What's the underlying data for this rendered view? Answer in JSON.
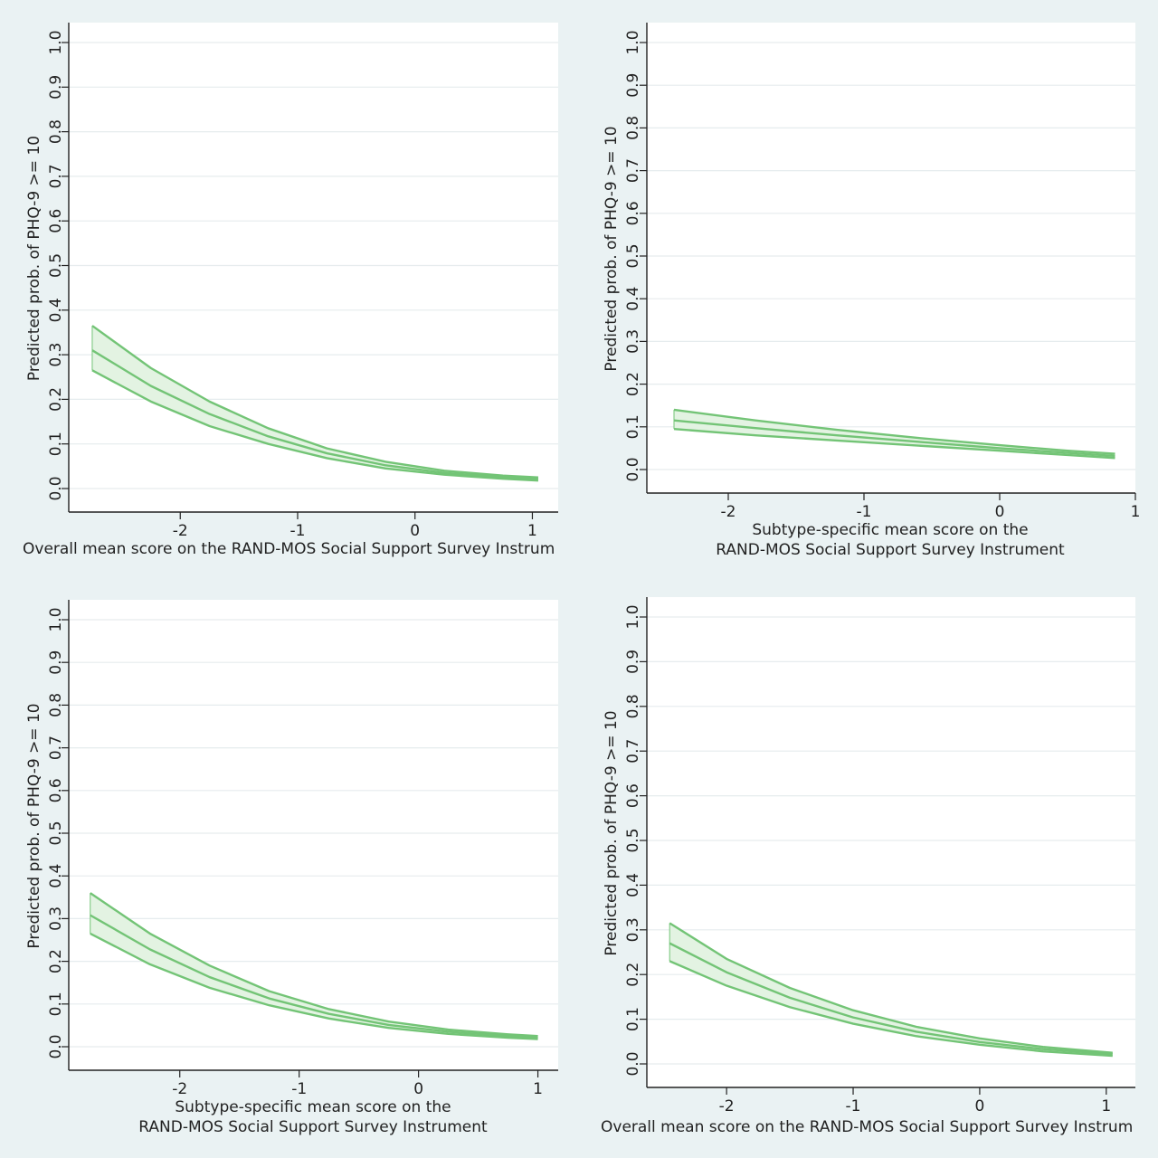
{
  "chart_data": [
    {
      "type": "line",
      "panel": "top-left",
      "ylabel": "Predicted prob. of PHQ-9 >= 10",
      "xlabel_lines": [
        "Overall mean score on the RAND-MOS Social Support Survey Instrum"
      ],
      "ylim": [
        0,
        1
      ],
      "yticks": [
        "0.0",
        "0.1",
        "0.2",
        "0.3",
        "0.4",
        "0.5",
        "0.6",
        "0.7",
        "0.8",
        "0.9",
        "1.0"
      ],
      "xlim": [
        -2.95,
        1.22
      ],
      "xticks": [
        -2,
        -1,
        0,
        1
      ],
      "grid": true,
      "color": "#73c476",
      "band_fill": "#e3f3e2",
      "series": [
        {
          "role": "upper",
          "x": [
            -2.75,
            -2.25,
            -1.75,
            -1.25,
            -0.75,
            -0.25,
            0.25,
            0.75,
            1.05
          ],
          "values": [
            0.365,
            0.27,
            0.195,
            0.135,
            0.09,
            0.06,
            0.04,
            0.029,
            0.025
          ]
        },
        {
          "role": "estimate",
          "x": [
            -2.75,
            -2.25,
            -1.75,
            -1.25,
            -0.75,
            -0.25,
            0.25,
            0.75,
            1.05
          ],
          "values": [
            0.31,
            0.23,
            0.167,
            0.117,
            0.079,
            0.052,
            0.035,
            0.026,
            0.022
          ]
        },
        {
          "role": "lower",
          "x": [
            -2.75,
            -2.25,
            -1.75,
            -1.25,
            -0.75,
            -0.25,
            0.25,
            0.75,
            1.05
          ],
          "values": [
            0.265,
            0.195,
            0.14,
            0.1,
            0.068,
            0.045,
            0.031,
            0.022,
            0.018
          ]
        }
      ]
    },
    {
      "type": "line",
      "panel": "top-right",
      "ylabel": "Predicted prob. of PHQ-9 >= 10",
      "xlabel_lines": [
        "Subtype-specific mean score on the",
        "RAND-MOS Social Support Survey Instrument"
      ],
      "ylim": [
        0,
        1
      ],
      "yticks": [
        "0.0",
        "0.1",
        "0.2",
        "0.3",
        "0.4",
        "0.5",
        "0.6",
        "0.7",
        "0.8",
        "0.9",
        "1.0"
      ],
      "xlim": [
        -2.6,
        1.0
      ],
      "xticks": [
        -2,
        -1,
        0,
        1
      ],
      "grid": true,
      "color": "#73c476",
      "band_fill": "#e3f3e2",
      "series": [
        {
          "role": "upper",
          "x": [
            -2.4,
            -1.8,
            -1.2,
            -0.6,
            0.0,
            0.5,
            0.85
          ],
          "values": [
            0.14,
            0.115,
            0.093,
            0.074,
            0.057,
            0.044,
            0.037
          ]
        },
        {
          "role": "estimate",
          "x": [
            -2.4,
            -1.8,
            -1.2,
            -0.6,
            0.0,
            0.5,
            0.85
          ],
          "values": [
            0.115,
            0.097,
            0.08,
            0.065,
            0.05,
            0.039,
            0.032
          ]
        },
        {
          "role": "lower",
          "x": [
            -2.4,
            -1.8,
            -1.2,
            -0.6,
            0.0,
            0.5,
            0.85
          ],
          "values": [
            0.095,
            0.08,
            0.068,
            0.056,
            0.044,
            0.034,
            0.027
          ]
        }
      ]
    },
    {
      "type": "line",
      "panel": "bottom-left",
      "ylabel": "Predicted prob. of PHQ-9 >= 10",
      "xlabel_lines": [
        "Subtype-specific mean score on the",
        "RAND-MOS Social Support Survey Instrument"
      ],
      "ylim": [
        0,
        1
      ],
      "yticks": [
        "0.0",
        "0.1",
        "0.2",
        "0.3",
        "0.4",
        "0.5",
        "0.6",
        "0.7",
        "0.8",
        "0.9",
        "1.0"
      ],
      "xlim": [
        -2.93,
        1.17
      ],
      "xticks": [
        -2,
        -1,
        0,
        1
      ],
      "grid": true,
      "color": "#73c476",
      "band_fill": "#e3f3e2",
      "series": [
        {
          "role": "upper",
          "x": [
            -2.75,
            -2.25,
            -1.75,
            -1.25,
            -0.75,
            -0.25,
            0.25,
            0.75,
            1.0
          ],
          "values": [
            0.36,
            0.265,
            0.19,
            0.13,
            0.088,
            0.059,
            0.04,
            0.029,
            0.025
          ]
        },
        {
          "role": "estimate",
          "x": [
            -2.75,
            -2.25,
            -1.75,
            -1.25,
            -0.75,
            -0.25,
            0.25,
            0.75,
            1.0
          ],
          "values": [
            0.308,
            0.228,
            0.163,
            0.113,
            0.077,
            0.051,
            0.035,
            0.025,
            0.021
          ]
        },
        {
          "role": "lower",
          "x": [
            -2.75,
            -2.25,
            -1.75,
            -1.25,
            -0.75,
            -0.25,
            0.25,
            0.75,
            1.0
          ],
          "values": [
            0.265,
            0.193,
            0.138,
            0.097,
            0.066,
            0.044,
            0.03,
            0.021,
            0.018
          ]
        }
      ]
    },
    {
      "type": "line",
      "panel": "bottom-right",
      "ylabel": "Predicted prob. of PHQ-9 >= 10",
      "xlabel_lines": [
        "Overall mean score on the RAND-MOS Social Support Survey Instrum"
      ],
      "ylim": [
        0,
        1
      ],
      "yticks": [
        "0.0",
        "0.1",
        "0.2",
        "0.3",
        "0.4",
        "0.5",
        "0.6",
        "0.7",
        "0.8",
        "0.9",
        "1.0"
      ],
      "xlim": [
        -2.63,
        1.23
      ],
      "xticks": [
        -2,
        -1,
        0,
        1
      ],
      "grid": true,
      "color": "#73c476",
      "band_fill": "#e3f3e2",
      "series": [
        {
          "role": "upper",
          "x": [
            -2.45,
            -2.0,
            -1.5,
            -1.0,
            -0.5,
            0.0,
            0.5,
            1.05
          ],
          "values": [
            0.315,
            0.235,
            0.17,
            0.12,
            0.083,
            0.057,
            0.038,
            0.025
          ]
        },
        {
          "role": "estimate",
          "x": [
            -2.45,
            -2.0,
            -1.5,
            -1.0,
            -0.5,
            0.0,
            0.5,
            1.05
          ],
          "values": [
            0.27,
            0.205,
            0.148,
            0.104,
            0.072,
            0.049,
            0.033,
            0.022
          ]
        },
        {
          "role": "lower",
          "x": [
            -2.45,
            -2.0,
            -1.5,
            -1.0,
            -0.5,
            0.0,
            0.5,
            1.05
          ],
          "values": [
            0.23,
            0.175,
            0.127,
            0.09,
            0.062,
            0.043,
            0.028,
            0.018
          ]
        }
      ]
    }
  ],
  "colors": {
    "outer_background": "#eaf2f3",
    "plot_background": "#ffffff",
    "gridline": "#e6ecee",
    "axis": "#222222"
  }
}
